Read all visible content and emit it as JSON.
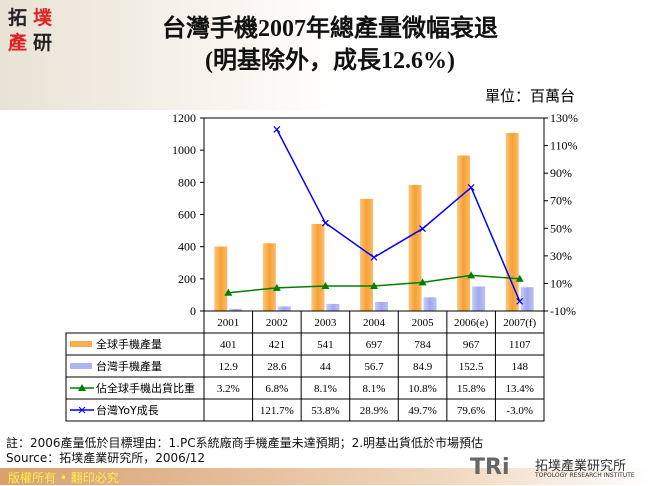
{
  "logo": {
    "chars": [
      "拓",
      "墣",
      "產",
      "研"
    ]
  },
  "title_line1": "台灣手機2007年總產量微幅衰退",
  "title_line2": "(明基除外，成長12.6%)",
  "unit": "單位：百萬台",
  "note": "註：2006產量低於目標理由：1.PC系統廠商手機產量未達預期；2.明基出貨低於市場預估",
  "source": "Source：拓墣產業研究所，2006/12",
  "footer": "版權所有 • 翻印必究",
  "brand": {
    "mark": "TRi",
    "name": "拓墣產業研究所",
    "sub": "TOPOLOGY RESEARCH INSTITUTE"
  },
  "chart_data": {
    "type": "bar+line",
    "categories": [
      "2001",
      "2002",
      "2003",
      "2004",
      "2005",
      "2006(e)",
      "2007(f)"
    ],
    "left_axis": {
      "min": 0,
      "max": 1200,
      "step": 200,
      "ticks": [
        "0",
        "200",
        "400",
        "600",
        "800",
        "1000",
        "1200"
      ]
    },
    "right_axis": {
      "min": -10,
      "max": 130,
      "step": 20,
      "ticks": [
        "-10%",
        "10%",
        "30%",
        "50%",
        "70%",
        "90%",
        "110%",
        "130%"
      ]
    },
    "series": [
      {
        "name": "全球手機產量",
        "type": "bar",
        "axis": "left",
        "color": "#f7a030",
        "values": [
          401,
          421,
          541,
          697,
          784,
          967,
          1107
        ],
        "labels": [
          "401",
          "421",
          "541",
          "697",
          "784",
          "967",
          "1107"
        ]
      },
      {
        "name": "台灣手機產量",
        "type": "bar",
        "axis": "left",
        "color": "#a0a8f0",
        "values": [
          12.9,
          28.6,
          44,
          56.7,
          84.9,
          152.5,
          148
        ],
        "labels": [
          "12.9",
          "28.6",
          "44",
          "56.7",
          "84.9",
          "152.5",
          "148"
        ]
      },
      {
        "name": "佔全球手機出貨比重",
        "type": "line",
        "axis": "right",
        "color": "#008000",
        "marker": "triangle",
        "values": [
          3.2,
          6.8,
          8.1,
          8.1,
          10.8,
          15.8,
          13.4
        ],
        "labels": [
          "3.2%",
          "6.8%",
          "8.1%",
          "8.1%",
          "10.8%",
          "15.8%",
          "13.4%"
        ]
      },
      {
        "name": "台灣YoY成長",
        "type": "line",
        "axis": "right",
        "color": "#0000ff",
        "marker": "x",
        "values": [
          null,
          121.7,
          53.8,
          28.9,
          49.7,
          79.6,
          -3.0
        ],
        "labels": [
          "",
          "121.7%",
          "53.8%",
          "28.9%",
          "49.7%",
          "79.6%",
          "-3.0%"
        ]
      }
    ]
  }
}
